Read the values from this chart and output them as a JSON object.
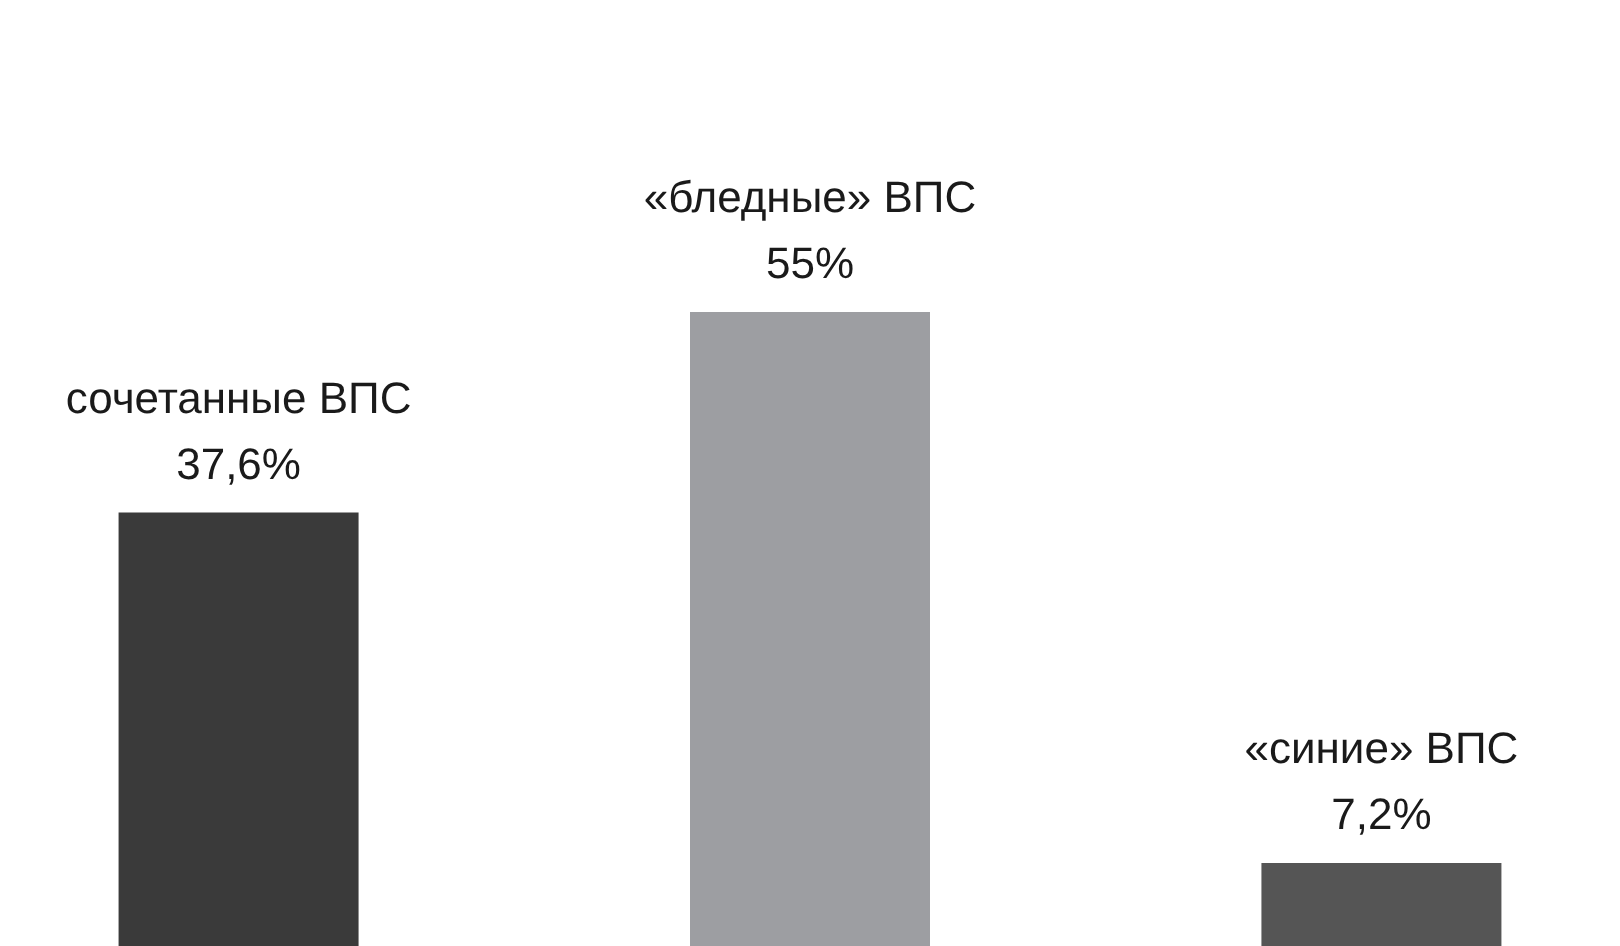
{
  "chart_data": {
    "type": "bar",
    "categories": [
      "сочетанные ВПС",
      "«бледные» ВПС",
      "«синие» ВПС"
    ],
    "values": [
      37.6,
      55,
      7.2
    ],
    "value_labels": [
      "37,6%",
      "55%",
      "7,2%"
    ],
    "colors": [
      "#3a3a3a",
      "#9d9ea2",
      "#555555"
    ]
  }
}
